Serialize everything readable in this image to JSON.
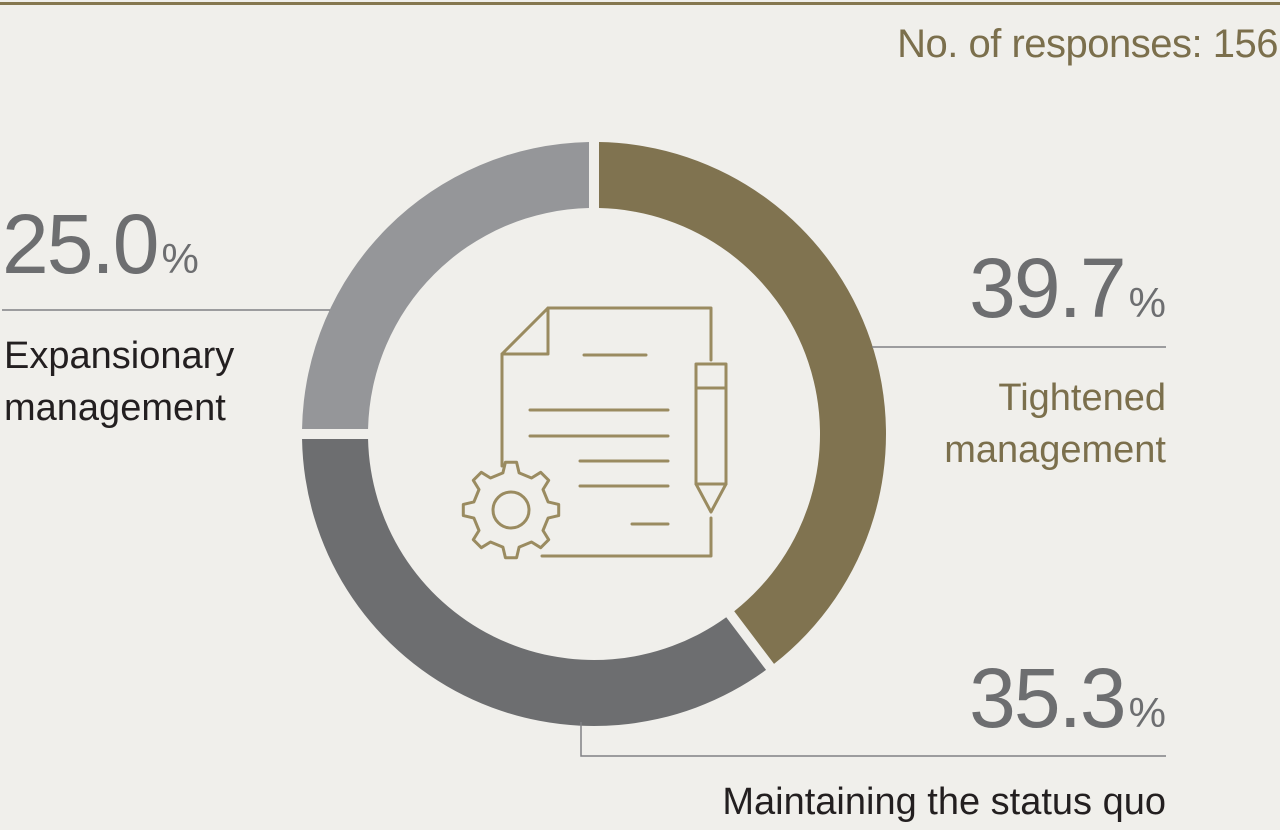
{
  "responses_label": "No. of responses: 156",
  "colors": {
    "background": "#f0efeb",
    "accent": "#85774f",
    "tightened": "#807350",
    "status_quo": "#6d6e70",
    "expansionary": "#959699",
    "text": "#231f20",
    "icon": "#9a8b60"
  },
  "icon": "document-gear-pencil-icon",
  "chart_data": {
    "type": "pie",
    "donut": true,
    "total_responses": 156,
    "slices": [
      {
        "label": "Tightened management",
        "value": 39.7,
        "color": "#807350",
        "pct_text": "39.7",
        "unit": "%"
      },
      {
        "label": "Maintaining the status quo",
        "value": 35.3,
        "color": "#6d6e70",
        "pct_text": "35.3",
        "unit": "%"
      },
      {
        "label": "Expansionary management",
        "value": 25.0,
        "color": "#959699",
        "pct_text": "25.0",
        "unit": "%"
      }
    ],
    "labels_display": {
      "tightened": [
        "Tightened",
        "management"
      ],
      "status_quo": [
        "Maintaining the status quo"
      ],
      "expansionary": [
        "Expansionary",
        "management"
      ]
    }
  }
}
